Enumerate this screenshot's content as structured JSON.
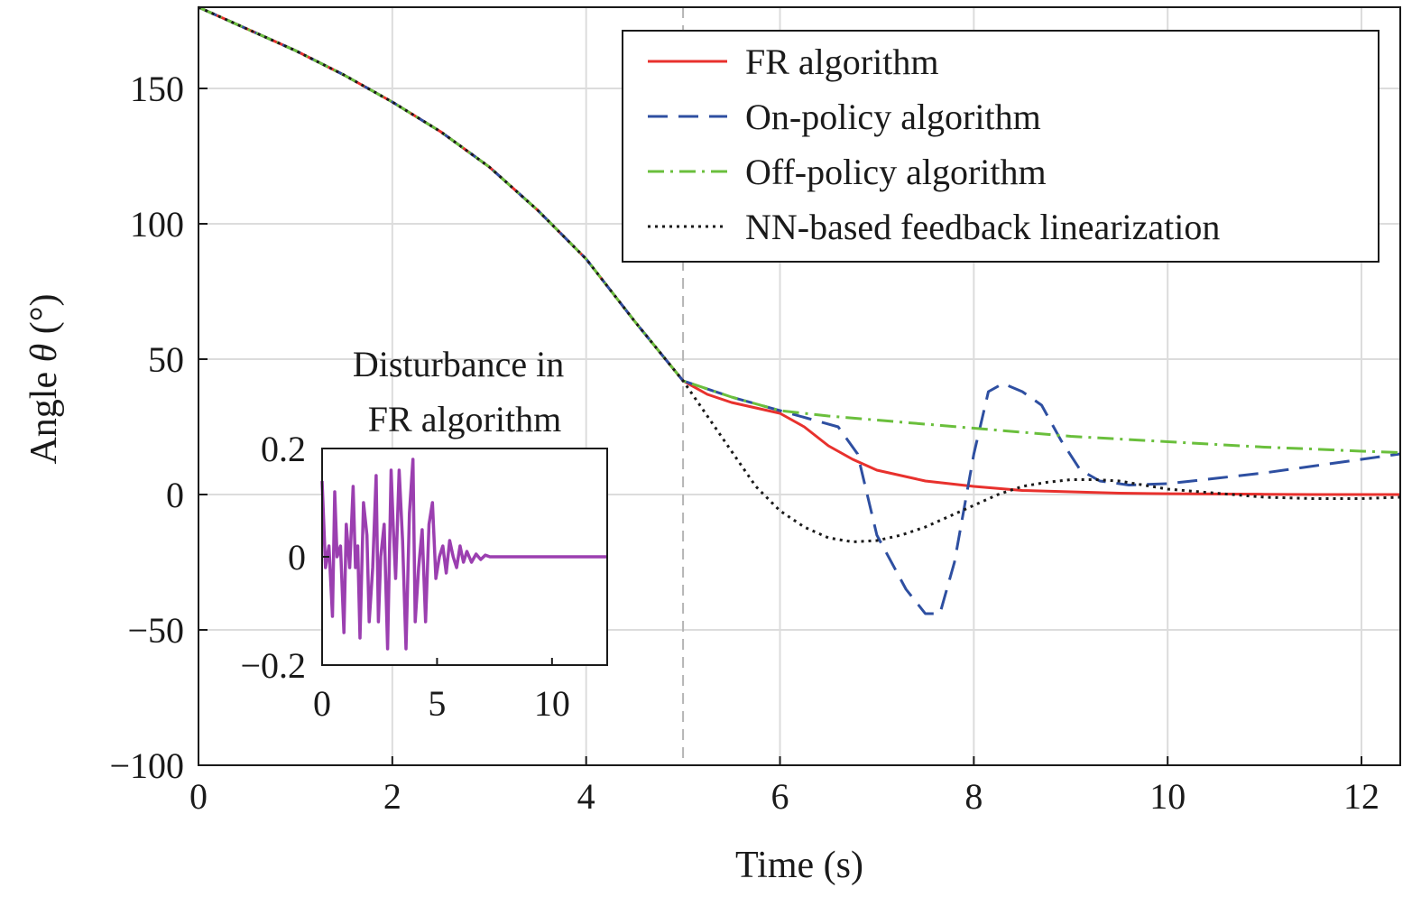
{
  "chart_data": [
    {
      "type": "line",
      "xlabel": "Time (s)",
      "ylabel_prefix": "Angle ",
      "ylabel_symbol": "θ",
      "ylabel_suffix": " (°)",
      "xlim": [
        0,
        12.4
      ],
      "ylim": [
        -100,
        180
      ],
      "xticks": [
        0,
        2,
        4,
        6,
        8,
        10,
        12
      ],
      "yticks": [
        -100,
        -50,
        0,
        50,
        100,
        150
      ],
      "xtick_labels": [
        "0",
        "2",
        "4",
        "6",
        "8",
        "10",
        "12"
      ],
      "ytick_labels": [
        "−100",
        "−50",
        "0",
        "50",
        "100",
        "150"
      ],
      "grid": true,
      "reference_line_x": 5,
      "legend_position": "top-right",
      "series": [
        {
          "name": "FR algorithm",
          "color": "#e8312d",
          "style": "solid",
          "x": [
            0,
            0.5,
            1,
            1.5,
            2,
            2.5,
            3,
            3.5,
            4,
            4.5,
            5,
            5.25,
            5.5,
            5.75,
            6,
            6.25,
            6.5,
            6.75,
            7,
            7.5,
            8,
            8.5,
            9,
            9.5,
            10,
            10.5,
            11,
            11.5,
            12,
            12.4
          ],
          "y": [
            180,
            172,
            164,
            155,
            145,
            134,
            121,
            105,
            87,
            64,
            42,
            37,
            34,
            32,
            30,
            25,
            18,
            13,
            9,
            5,
            3,
            1.5,
            1,
            0.5,
            0.3,
            0.2,
            0.1,
            0,
            0,
            0
          ]
        },
        {
          "name": "On-policy algorithm",
          "color": "#2e4fa1",
          "style": "dashed",
          "x": [
            0,
            0.5,
            1,
            1.5,
            2,
            2.5,
            3,
            3.5,
            4,
            4.5,
            5,
            5.5,
            6,
            6.3,
            6.6,
            6.8,
            7,
            7.3,
            7.5,
            7.65,
            7.8,
            8,
            8.15,
            8.3,
            8.5,
            8.7,
            8.9,
            9.1,
            9.3,
            9.6,
            10,
            10.5,
            11,
            11.5,
            12,
            12.4
          ],
          "y": [
            180,
            172,
            164,
            155,
            145,
            134,
            121,
            105,
            87,
            64,
            42,
            36,
            31,
            28,
            25,
            15,
            -15,
            -35,
            -44,
            -44,
            -25,
            15,
            38,
            41,
            38,
            33,
            20,
            9,
            5,
            3.5,
            4,
            6,
            8,
            10.5,
            13,
            15
          ]
        },
        {
          "name": "Off-policy algorithm",
          "color": "#6abf3c",
          "style": "dashdot",
          "x": [
            0,
            0.5,
            1,
            1.5,
            2,
            2.5,
            3,
            3.5,
            4,
            4.5,
            5,
            5.5,
            6,
            6.5,
            7,
            7.5,
            8,
            8.5,
            9,
            9.5,
            10,
            10.5,
            11,
            11.5,
            12,
            12.4
          ],
          "y": [
            180,
            172,
            164,
            155,
            145,
            134,
            121,
            105,
            87,
            64,
            42,
            36,
            31,
            29,
            27.5,
            26,
            24.5,
            23,
            21.5,
            20.5,
            19.5,
            18.5,
            17.5,
            16.8,
            16,
            15.5
          ]
        },
        {
          "name": "NN-based feedback linearization",
          "color": "#1a1a1a",
          "style": "dotted",
          "x": [
            0,
            0.5,
            1,
            1.5,
            2,
            2.5,
            3,
            3.5,
            4,
            4.5,
            5,
            5.25,
            5.5,
            5.75,
            6,
            6.25,
            6.5,
            6.75,
            7,
            7.25,
            7.5,
            7.75,
            8,
            8.25,
            8.5,
            8.75,
            9,
            9.25,
            9.5,
            9.75,
            10,
            10.5,
            11,
            11.5,
            12,
            12.4
          ],
          "y": [
            180,
            172,
            164,
            155,
            145,
            134,
            121,
            105,
            87,
            64,
            42,
            29,
            16,
            3,
            -6,
            -12,
            -16,
            -17.5,
            -17,
            -15,
            -12,
            -8,
            -4,
            0,
            3,
            4.5,
            5.5,
            5.5,
            5,
            3.5,
            2,
            0.5,
            -1,
            -1.5,
            -1.5,
            -1
          ]
        }
      ]
    },
    {
      "type": "line",
      "title_line1": "Disturbance in",
      "title_line2": "FR algorithm",
      "xlim": [
        0,
        12.4
      ],
      "ylim": [
        -0.2,
        0.2
      ],
      "xticks": [
        0,
        5,
        10
      ],
      "yticks": [
        -0.2,
        0,
        0.2
      ],
      "xtick_labels": [
        "0",
        "5",
        "10"
      ],
      "ytick_labels": [
        "−0.2",
        "0",
        "0.2"
      ],
      "grid": false,
      "series": [
        {
          "color": "#9b3fb0",
          "style": "solid",
          "x": [
            0,
            0.15,
            0.3,
            0.45,
            0.55,
            0.65,
            0.8,
            0.95,
            1.05,
            1.2,
            1.35,
            1.45,
            1.55,
            1.65,
            1.8,
            1.95,
            2.05,
            2.2,
            2.35,
            2.45,
            2.55,
            2.7,
            2.85,
            3.0,
            3.1,
            3.2,
            3.35,
            3.5,
            3.65,
            3.8,
            3.95,
            4.05,
            4.2,
            4.35,
            4.5,
            4.65,
            4.8,
            4.95,
            5.1,
            5.25,
            5.4,
            5.55,
            5.7,
            5.85,
            6.0,
            6.15,
            6.3,
            6.5,
            6.7,
            6.9,
            7.1,
            7.3,
            7.6,
            8,
            9,
            10,
            11,
            12.4
          ],
          "y": [
            0.14,
            -0.02,
            0.02,
            -0.11,
            0.12,
            0.0,
            0.02,
            -0.14,
            0.06,
            -0.02,
            0.13,
            -0.02,
            0.02,
            -0.15,
            0.1,
            0.04,
            -0.12,
            -0.02,
            0.15,
            -0.12,
            0.0,
            0.06,
            -0.17,
            0.16,
            0.05,
            -0.04,
            0.16,
            0.03,
            -0.17,
            0.08,
            0.18,
            -0.12,
            -0.02,
            0.05,
            -0.12,
            0.06,
            0.1,
            -0.04,
            0.0,
            0.02,
            -0.03,
            0.03,
            0.0,
            -0.02,
            0.02,
            -0.01,
            0.01,
            -0.01,
            0.005,
            -0.005,
            0.003,
            0,
            0,
            0,
            0,
            0,
            0,
            0
          ]
        }
      ]
    }
  ]
}
